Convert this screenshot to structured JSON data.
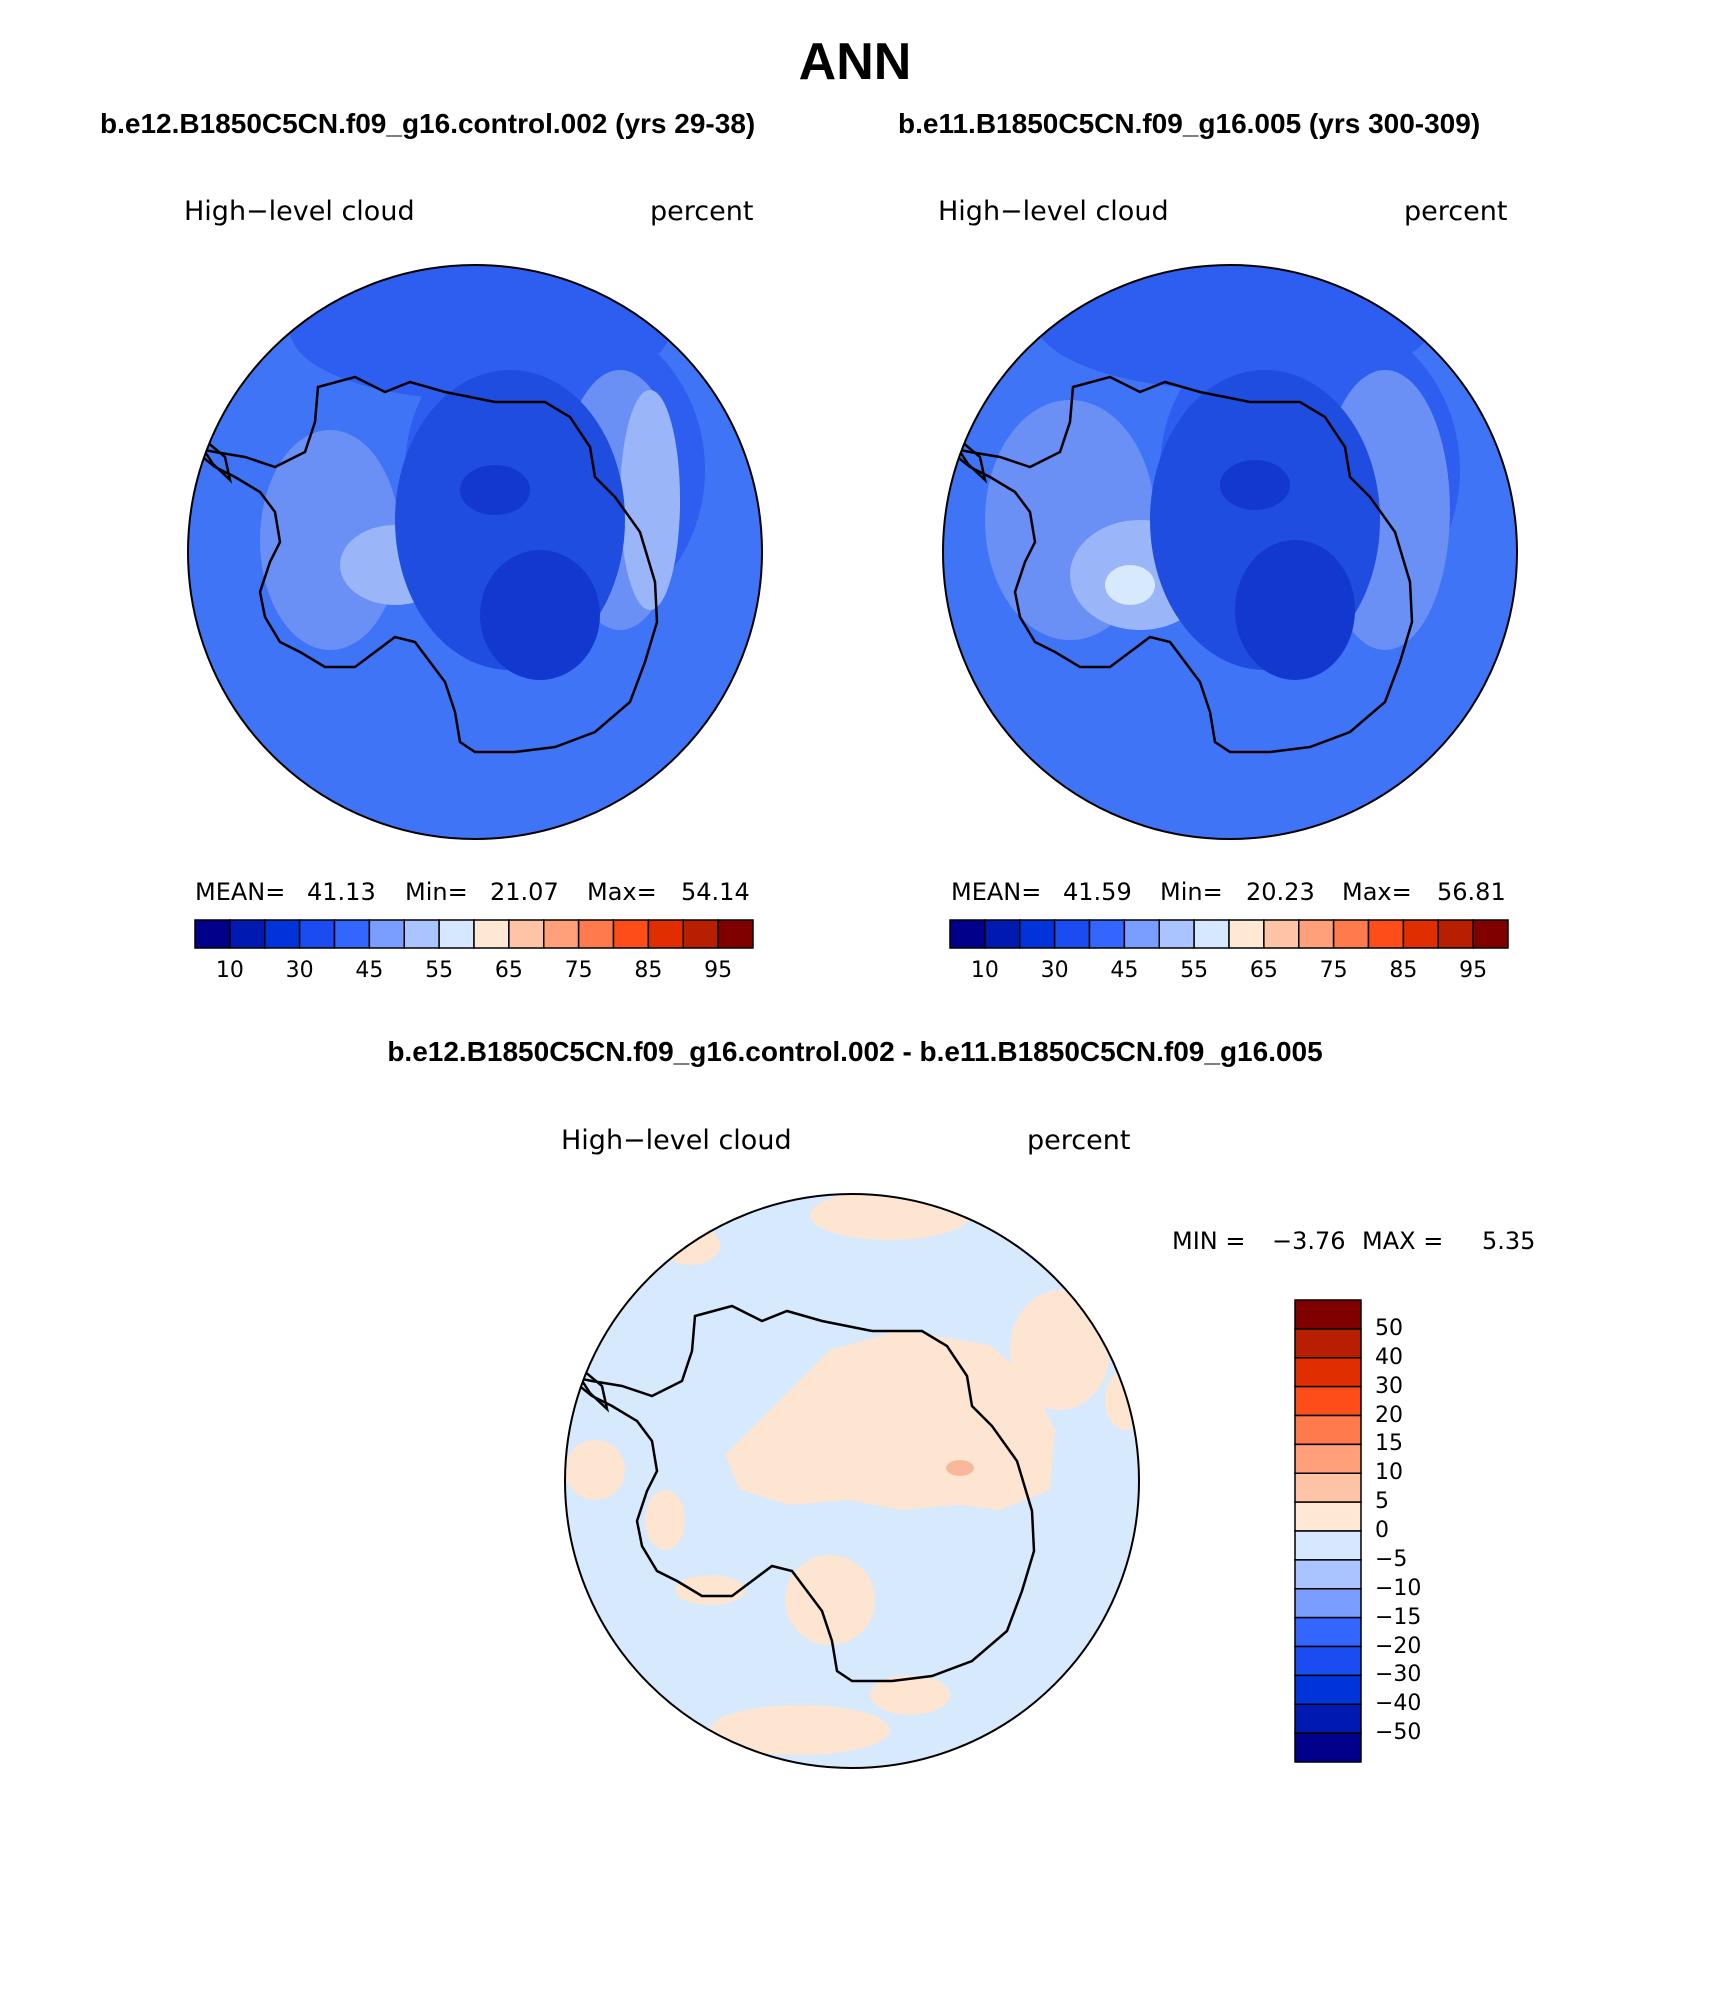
{
  "page_title": "ANN",
  "panels": [
    {
      "case_label": "b.e12.B1850C5CN.f09_g16.control.002 (yrs 29-38)",
      "variable": "High−level cloud",
      "units": "percent",
      "stats": {
        "mean_label": "MEAN=",
        "mean": "41.13",
        "min_label": "Min=",
        "min": "21.07",
        "max_label": "Max=",
        "max": "54.14"
      }
    },
    {
      "case_label": "b.e11.B1850C5CN.f09_g16.005 (yrs 300-309)",
      "variable": "High−level cloud",
      "units": "percent",
      "stats": {
        "mean_label": "MEAN=",
        "mean": "41.59",
        "min_label": "Min=",
        "min": "20.23",
        "max_label": "Max=",
        "max": "56.81"
      }
    }
  ],
  "diff_panel": {
    "case_label": "b.e12.B1850C5CN.f09_g16.control.002 - b.e11.B1850C5CN.f09_g16.005",
    "variable": "High−level cloud",
    "units": "percent",
    "stats": {
      "min_label": "MIN =",
      "min": "−3.76",
      "max_label": "MAX =",
      "max": "5.35"
    }
  },
  "colorbar_main": {
    "colors": [
      "#00008a",
      "#0019b0",
      "#0033d9",
      "#1a4cf2",
      "#3366ff",
      "#7a9eff",
      "#a9c4ff",
      "#d6e8ff",
      "#ffe8d4",
      "#ffc4a6",
      "#ffa07a",
      "#ff7a4d",
      "#ff4d1a",
      "#e02e00",
      "#b81e00",
      "#800000"
    ],
    "tick_labels": [
      "10",
      "30",
      "45",
      "55",
      "65",
      "75",
      "85",
      "95"
    ]
  },
  "colorbar_diff": {
    "colors": [
      "#00008a",
      "#0019b0",
      "#0033d9",
      "#1a4cf2",
      "#3366ff",
      "#7a9eff",
      "#a9c4ff",
      "#d6e8ff",
      "#ffe8d4",
      "#ffc4a6",
      "#ffa07a",
      "#ff7a4d",
      "#ff4d1a",
      "#e02e00",
      "#b81e00",
      "#800000"
    ],
    "tick_labels": [
      "50",
      "40",
      "30",
      "20",
      "15",
      "10",
      "5",
      "0",
      "−5",
      "−10",
      "−15",
      "−20",
      "−30",
      "−40",
      "−50"
    ]
  },
  "map_colors": {
    "ocean_main": "#3f74f6",
    "band_main": "#2e5ef0",
    "interior_light": "#6a90f5",
    "interior_lighter": "#9ab6f8",
    "interior_dark": "#1f4de0",
    "interior_darker": "#1238cf",
    "diff_background": "#d7e9fc",
    "diff_positive": "#fde5d2",
    "diff_strong": "#f8b89a",
    "coastline": "#000000"
  }
}
